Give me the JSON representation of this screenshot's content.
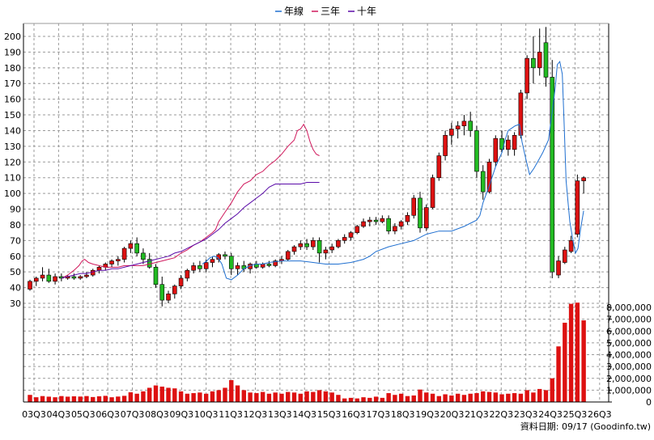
{
  "chart_data": {
    "type": "candlestick",
    "legend": {
      "placement": "top-center",
      "items": [
        {
          "name": "年線",
          "color": "#1f6fd0"
        },
        {
          "name": "三年",
          "color": "#d0185c"
        },
        {
          "name": "十年",
          "color": "#5a0aa8"
        }
      ]
    },
    "price_axis": {
      "min": 30,
      "max": 200,
      "ticks": [
        200,
        190,
        180,
        170,
        160,
        150,
        140,
        130,
        120,
        110,
        100,
        90,
        80,
        70,
        60,
        50,
        40,
        30
      ]
    },
    "volume_axis": {
      "min": 0,
      "max": 8000000,
      "ticks": [
        "8,000,000",
        "7,000,000",
        "6,000,000",
        "5,000,000",
        "4,000,000",
        "3,000,000",
        "2,000,000",
        "1,000,000",
        "0"
      ],
      "tick_values": [
        8000000,
        7000000,
        6000000,
        5000000,
        4000000,
        3000000,
        2000000,
        1000000,
        0
      ]
    },
    "x_tick_labels": [
      "03Q3",
      "04Q3",
      "05Q3",
      "06Q3",
      "07Q3",
      "08Q3",
      "09Q3",
      "10Q3",
      "11Q3",
      "12Q3",
      "13Q3",
      "14Q3",
      "15Q3",
      "16Q3",
      "17Q3",
      "18Q3",
      "19Q3",
      "20Q3",
      "21Q3",
      "22Q3",
      "23Q3",
      "24Q3",
      "25Q3",
      "26Q3"
    ],
    "colors": {
      "up": "#dd1111",
      "down": "#22bb22",
      "volume": "#dd1111"
    },
    "grid": true,
    "candles": [
      {
        "o": 39,
        "h": 45,
        "l": 38,
        "c": 44
      },
      {
        "o": 44,
        "h": 47,
        "l": 41,
        "c": 46
      },
      {
        "o": 46,
        "h": 53,
        "l": 44,
        "c": 48
      },
      {
        "o": 48,
        "h": 52,
        "l": 43,
        "c": 44
      },
      {
        "o": 44,
        "h": 49,
        "l": 42,
        "c": 47
      },
      {
        "o": 47,
        "h": 49,
        "l": 44,
        "c": 46
      },
      {
        "o": 46,
        "h": 48,
        "l": 45,
        "c": 47
      },
      {
        "o": 47,
        "h": 49,
        "l": 45,
        "c": 46
      },
      {
        "o": 46,
        "h": 48,
        "l": 45,
        "c": 47
      },
      {
        "o": 47,
        "h": 50,
        "l": 46,
        "c": 48
      },
      {
        "o": 48,
        "h": 52,
        "l": 47,
        "c": 51
      },
      {
        "o": 51,
        "h": 54,
        "l": 49,
        "c": 53
      },
      {
        "o": 53,
        "h": 56,
        "l": 51,
        "c": 55
      },
      {
        "o": 55,
        "h": 58,
        "l": 53,
        "c": 57
      },
      {
        "o": 57,
        "h": 60,
        "l": 54,
        "c": 58
      },
      {
        "o": 58,
        "h": 66,
        "l": 56,
        "c": 65
      },
      {
        "o": 65,
        "h": 70,
        "l": 62,
        "c": 68
      },
      {
        "o": 68,
        "h": 72,
        "l": 60,
        "c": 62
      },
      {
        "o": 62,
        "h": 65,
        "l": 55,
        "c": 58
      },
      {
        "o": 58,
        "h": 62,
        "l": 52,
        "c": 53
      },
      {
        "o": 53,
        "h": 55,
        "l": 40,
        "c": 42
      },
      {
        "o": 42,
        "h": 47,
        "l": 28,
        "c": 32
      },
      {
        "o": 32,
        "h": 38,
        "l": 30,
        "c": 36
      },
      {
        "o": 36,
        "h": 42,
        "l": 33,
        "c": 41
      },
      {
        "o": 41,
        "h": 48,
        "l": 39,
        "c": 46
      },
      {
        "o": 46,
        "h": 52,
        "l": 44,
        "c": 51
      },
      {
        "o": 51,
        "h": 56,
        "l": 49,
        "c": 54
      },
      {
        "o": 54,
        "h": 57,
        "l": 50,
        "c": 52
      },
      {
        "o": 52,
        "h": 58,
        "l": 50,
        "c": 56
      },
      {
        "o": 56,
        "h": 60,
        "l": 53,
        "c": 58
      },
      {
        "o": 58,
        "h": 62,
        "l": 56,
        "c": 61
      },
      {
        "o": 61,
        "h": 63,
        "l": 58,
        "c": 60
      },
      {
        "o": 60,
        "h": 62,
        "l": 48,
        "c": 52
      },
      {
        "o": 52,
        "h": 56,
        "l": 48,
        "c": 54
      },
      {
        "o": 54,
        "h": 57,
        "l": 50,
        "c": 52
      },
      {
        "o": 52,
        "h": 56,
        "l": 49,
        "c": 55
      },
      {
        "o": 55,
        "h": 57,
        "l": 52,
        "c": 53
      },
      {
        "o": 53,
        "h": 56,
        "l": 52,
        "c": 55
      },
      {
        "o": 55,
        "h": 57,
        "l": 53,
        "c": 54
      },
      {
        "o": 54,
        "h": 58,
        "l": 53,
        "c": 57
      },
      {
        "o": 57,
        "h": 60,
        "l": 55,
        "c": 58
      },
      {
        "o": 58,
        "h": 64,
        "l": 57,
        "c": 63
      },
      {
        "o": 63,
        "h": 67,
        "l": 61,
        "c": 66
      },
      {
        "o": 66,
        "h": 70,
        "l": 64,
        "c": 68
      },
      {
        "o": 68,
        "h": 71,
        "l": 64,
        "c": 66
      },
      {
        "o": 66,
        "h": 72,
        "l": 64,
        "c": 70
      },
      {
        "o": 70,
        "h": 72,
        "l": 56,
        "c": 62
      },
      {
        "o": 62,
        "h": 66,
        "l": 58,
        "c": 64
      },
      {
        "o": 64,
        "h": 68,
        "l": 62,
        "c": 66
      },
      {
        "o": 66,
        "h": 71,
        "l": 65,
        "c": 70
      },
      {
        "o": 70,
        "h": 74,
        "l": 68,
        "c": 72
      },
      {
        "o": 72,
        "h": 76,
        "l": 70,
        "c": 75
      },
      {
        "o": 75,
        "h": 80,
        "l": 74,
        "c": 79
      },
      {
        "o": 79,
        "h": 84,
        "l": 78,
        "c": 82
      },
      {
        "o": 82,
        "h": 85,
        "l": 79,
        "c": 83
      },
      {
        "o": 83,
        "h": 85,
        "l": 80,
        "c": 82
      },
      {
        "o": 82,
        "h": 86,
        "l": 81,
        "c": 84
      },
      {
        "o": 84,
        "h": 86,
        "l": 74,
        "c": 76
      },
      {
        "o": 76,
        "h": 81,
        "l": 74,
        "c": 79
      },
      {
        "o": 79,
        "h": 83,
        "l": 77,
        "c": 82
      },
      {
        "o": 82,
        "h": 88,
        "l": 80,
        "c": 86
      },
      {
        "o": 86,
        "h": 99,
        "l": 84,
        "c": 97
      },
      {
        "o": 97,
        "h": 101,
        "l": 75,
        "c": 78
      },
      {
        "o": 78,
        "h": 93,
        "l": 76,
        "c": 91
      },
      {
        "o": 91,
        "h": 112,
        "l": 90,
        "c": 110
      },
      {
        "o": 110,
        "h": 126,
        "l": 108,
        "c": 124
      },
      {
        "o": 124,
        "h": 140,
        "l": 121,
        "c": 137
      },
      {
        "o": 137,
        "h": 145,
        "l": 131,
        "c": 141
      },
      {
        "o": 141,
        "h": 146,
        "l": 135,
        "c": 143
      },
      {
        "o": 143,
        "h": 150,
        "l": 137,
        "c": 146
      },
      {
        "o": 146,
        "h": 152,
        "l": 136,
        "c": 140
      },
      {
        "o": 140,
        "h": 143,
        "l": 110,
        "c": 114
      },
      {
        "o": 114,
        "h": 118,
        "l": 96,
        "c": 101
      },
      {
        "o": 101,
        "h": 122,
        "l": 100,
        "c": 120
      },
      {
        "o": 120,
        "h": 137,
        "l": 117,
        "c": 135
      },
      {
        "o": 135,
        "h": 140,
        "l": 126,
        "c": 128
      },
      {
        "o": 128,
        "h": 137,
        "l": 124,
        "c": 134
      },
      {
        "o": 128,
        "h": 139,
        "l": 124,
        "c": 137
      },
      {
        "o": 137,
        "h": 166,
        "l": 135,
        "c": 164
      },
      {
        "o": 164,
        "h": 188,
        "l": 160,
        "c": 186
      },
      {
        "o": 186,
        "h": 200,
        "l": 170,
        "c": 180
      },
      {
        "o": 180,
        "h": 205,
        "l": 175,
        "c": 190
      },
      {
        "o": 196,
        "h": 206,
        "l": 168,
        "c": 174
      },
      {
        "o": 174,
        "h": 185,
        "l": 46,
        "c": 50
      },
      {
        "o": 48,
        "h": 60,
        "l": 46,
        "c": 57
      },
      {
        "o": 56,
        "h": 66,
        "l": 55,
        "c": 64
      },
      {
        "o": 63,
        "h": 73,
        "l": 62,
        "c": 70
      },
      {
        "o": 74,
        "h": 112,
        "l": 72,
        "c": 108
      },
      {
        "o": 108,
        "h": 111,
        "l": 100,
        "c": 110
      }
    ],
    "volume": [
      600000,
      400000,
      500000,
      450000,
      400000,
      500000,
      450000,
      480000,
      460000,
      500000,
      420000,
      480000,
      520000,
      400000,
      460000,
      520000,
      820000,
      700000,
      900000,
      1200000,
      1400000,
      1300000,
      1200000,
      1150000,
      900000,
      700000,
      750000,
      800000,
      700000,
      900000,
      1000000,
      1200000,
      1850000,
      1400000,
      1000000,
      800000,
      750000,
      850000,
      700000,
      800000,
      700000,
      850000,
      800000,
      700000,
      900000,
      850000,
      1000000,
      900000,
      800000,
      600000,
      300000,
      350000,
      300000,
      400000,
      350000,
      450000,
      350000,
      750000,
      600000,
      700000,
      500000,
      550000,
      1050000,
      800000,
      700000,
      500000,
      650000,
      550000,
      700000,
      600000,
      700000,
      750000,
      900000,
      850000,
      800000,
      650000,
      700000,
      750000,
      700000,
      1000000,
      800000,
      1100000,
      1000000,
      2000000,
      4700000,
      6700000,
      8300000,
      8400000,
      6900000
    ],
    "ma_year": [
      [
        54.8,
        55
      ],
      [
        56.2,
        57
      ],
      [
        57.2,
        59
      ],
      [
        58.5,
        60
      ],
      [
        59.8,
        59
      ],
      [
        61,
        55
      ],
      [
        62.4,
        46
      ],
      [
        64,
        45
      ],
      [
        66,
        48
      ],
      [
        68,
        52
      ],
      [
        70,
        54
      ],
      [
        72,
        55
      ],
      [
        74,
        55
      ],
      [
        76,
        56
      ],
      [
        80,
        57
      ],
      [
        86,
        57
      ],
      [
        90,
        56
      ],
      [
        94,
        55
      ],
      [
        98,
        55
      ],
      [
        102,
        56
      ],
      [
        104,
        57
      ],
      [
        106,
        58
      ],
      [
        108,
        60
      ],
      [
        110,
        63
      ],
      [
        114,
        66
      ],
      [
        118,
        68
      ],
      [
        122,
        70
      ],
      [
        126,
        74
      ],
      [
        130,
        76
      ],
      [
        134,
        76
      ],
      [
        138,
        79
      ],
      [
        140,
        81
      ],
      [
        142,
        83
      ],
      [
        143,
        86
      ],
      [
        144,
        94
      ],
      [
        146,
        105
      ],
      [
        148,
        117
      ],
      [
        150,
        126
      ],
      [
        151,
        134
      ],
      [
        152,
        140
      ],
      [
        154.2,
        143
      ],
      [
        155.6,
        144
      ],
      [
        156.4,
        133
      ],
      [
        157.6,
        122
      ],
      [
        158.8,
        112
      ],
      [
        160.2,
        116
      ],
      [
        161.6,
        121
      ],
      [
        163,
        126
      ],
      [
        164.8,
        134
      ],
      [
        166.2,
        155
      ],
      [
        167,
        168
      ],
      [
        167.6,
        182
      ],
      [
        168.4,
        184
      ],
      [
        169.2,
        176
      ],
      [
        169.8,
        144
      ],
      [
        170.4,
        108
      ],
      [
        171.6,
        82
      ],
      [
        172.6,
        70
      ],
      [
        173.4,
        62
      ],
      [
        174.2,
        65
      ],
      [
        175,
        77
      ],
      [
        176,
        89
      ]
    ],
    "ma_three": [
      [
        10.2,
        46
      ],
      [
        12,
        48
      ],
      [
        14,
        51
      ],
      [
        15.6,
        54
      ],
      [
        16.6,
        57
      ],
      [
        17.4,
        58
      ],
      [
        18.6,
        56
      ],
      [
        20,
        55
      ],
      [
        22,
        54
      ],
      [
        24,
        53
      ],
      [
        26,
        53
      ],
      [
        28,
        53
      ],
      [
        30,
        54
      ],
      [
        32,
        54
      ],
      [
        34,
        54
      ],
      [
        36,
        54
      ],
      [
        38,
        55
      ],
      [
        40,
        56
      ],
      [
        42,
        57
      ],
      [
        44,
        58
      ],
      [
        46,
        59
      ],
      [
        48,
        62
      ],
      [
        50,
        64
      ],
      [
        52,
        67
      ],
      [
        54,
        69
      ],
      [
        56,
        72
      ],
      [
        58,
        75
      ],
      [
        59,
        77
      ],
      [
        60,
        82
      ],
      [
        62,
        88
      ],
      [
        64,
        94
      ],
      [
        66,
        101
      ],
      [
        68,
        106
      ],
      [
        70,
        108
      ],
      [
        72,
        112
      ],
      [
        74,
        114
      ],
      [
        76,
        118
      ],
      [
        78,
        121
      ],
      [
        80,
        125
      ],
      [
        82,
        130
      ],
      [
        84,
        134
      ],
      [
        85,
        140
      ],
      [
        86,
        141
      ],
      [
        87,
        144
      ],
      [
        88,
        140
      ],
      [
        89,
        133
      ],
      [
        90,
        128
      ],
      [
        91,
        125
      ],
      [
        92,
        124
      ]
    ],
    "ma_ten": [
      [
        10,
        46
      ],
      [
        12,
        47
      ],
      [
        14,
        48
      ],
      [
        16,
        49
      ],
      [
        18,
        49
      ],
      [
        20,
        50
      ],
      [
        22,
        51
      ],
      [
        24,
        51
      ],
      [
        26,
        52
      ],
      [
        28,
        52
      ],
      [
        30,
        53
      ],
      [
        32,
        54
      ],
      [
        34,
        55
      ],
      [
        36,
        56
      ],
      [
        38,
        57
      ],
      [
        40,
        58
      ],
      [
        42,
        59
      ],
      [
        44,
        60
      ],
      [
        46,
        62
      ],
      [
        48,
        63
      ],
      [
        50,
        65
      ],
      [
        52,
        67
      ],
      [
        54,
        69
      ],
      [
        56,
        71
      ],
      [
        58,
        74
      ],
      [
        60,
        77
      ],
      [
        62,
        81
      ],
      [
        64,
        84
      ],
      [
        66,
        87
      ],
      [
        68,
        91
      ],
      [
        70,
        94
      ],
      [
        72,
        97
      ],
      [
        74,
        100
      ],
      [
        76,
        104
      ],
      [
        78,
        106
      ],
      [
        80,
        106
      ],
      [
        82,
        106
      ],
      [
        84,
        106
      ],
      [
        86,
        106
      ],
      [
        88,
        107
      ],
      [
        90,
        107
      ],
      [
        92,
        107
      ]
    ],
    "footer": {
      "date_label": "資料日期: 09/17",
      "source": "(Goodinfo.tw)"
    }
  }
}
